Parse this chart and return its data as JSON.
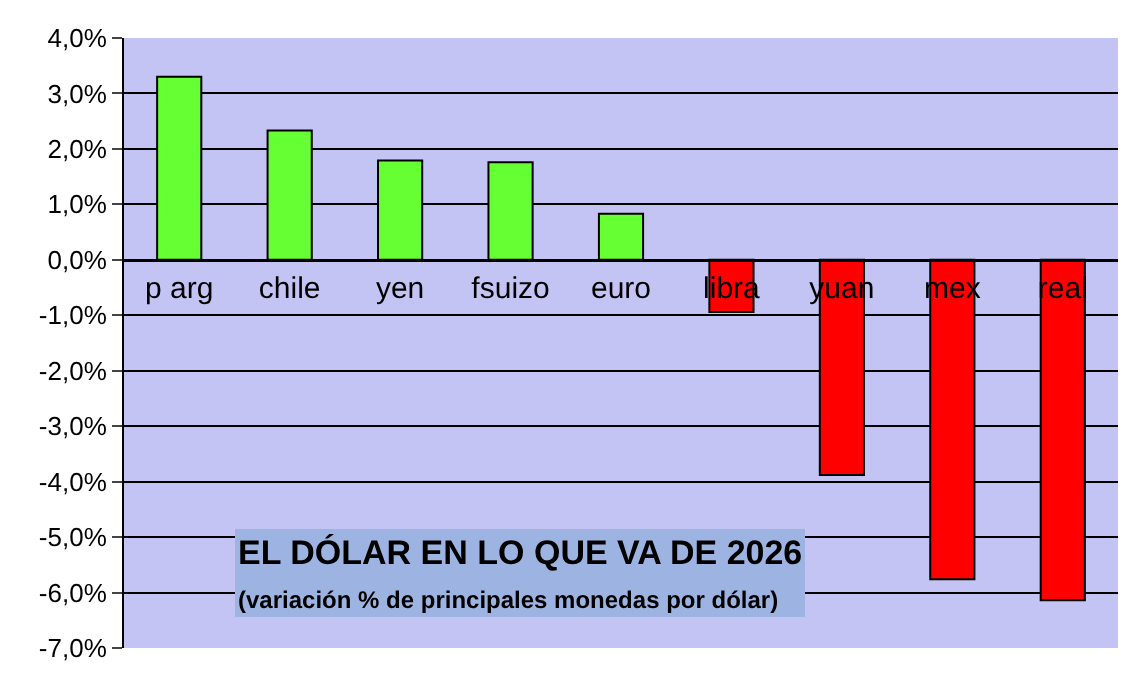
{
  "chart_data": {
    "type": "bar",
    "title": "EL DÓLAR EN LO QUE VA DE 2026",
    "subtitle": "(variación % de principales monedas por dólar)",
    "categories": [
      "p arg",
      "chile",
      "yen",
      "fsuizo",
      "euro",
      "libra",
      "yuan",
      "mex",
      "real"
    ],
    "values": [
      3.3,
      2.33,
      1.79,
      1.76,
      0.83,
      -0.94,
      -3.88,
      -5.76,
      -6.14
    ],
    "colors": [
      "#66ff33",
      "#66ff33",
      "#66ff33",
      "#66ff33",
      "#66ff33",
      "#ff0000",
      "#ff0000",
      "#ff0000",
      "#ff0000"
    ],
    "ylim": [
      -7,
      4
    ],
    "yticks": [
      {
        "value": 4,
        "label": "4,0%"
      },
      {
        "value": 3,
        "label": "3,0%"
      },
      {
        "value": 2,
        "label": "2,0%"
      },
      {
        "value": 1,
        "label": "1,0%"
      },
      {
        "value": 0,
        "label": "0,0%"
      },
      {
        "value": -1,
        "label": "-1,0%"
      },
      {
        "value": -2,
        "label": "-2,0%"
      },
      {
        "value": -3,
        "label": "-3,0%"
      },
      {
        "value": -4,
        "label": "-4,0%"
      },
      {
        "value": -5,
        "label": "-5,0%"
      },
      {
        "value": -6,
        "label": "-6,0%"
      },
      {
        "value": -7,
        "label": "-7,0%"
      }
    ],
    "grid": "y"
  }
}
